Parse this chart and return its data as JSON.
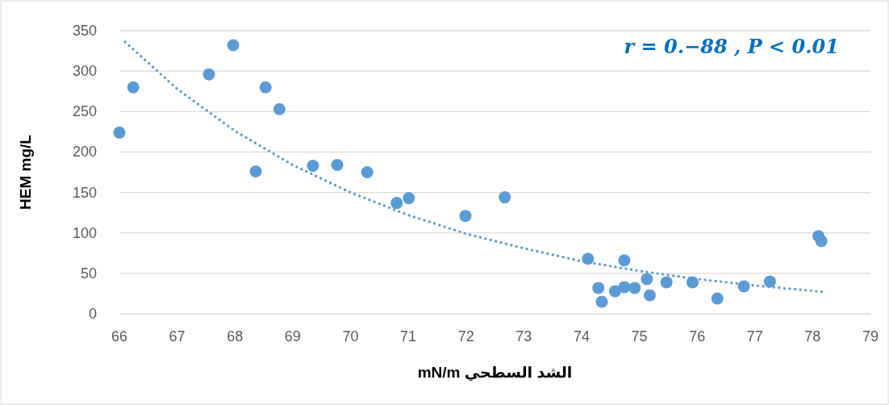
{
  "chart_data": {
    "type": "scatter",
    "xlabel": "الشد السطحي mN/m",
    "ylabel": "HEM mg/L",
    "annotations": [
      "r = 0.−88 , P < 0.01"
    ],
    "xlim": [
      66,
      79
    ],
    "xticks": [
      66,
      67,
      68,
      69,
      70,
      71,
      72,
      73,
      74,
      75,
      76,
      77,
      78,
      79
    ],
    "ylim": [
      0,
      350
    ],
    "yticks": [
      0,
      50,
      100,
      150,
      200,
      250,
      300,
      350
    ],
    "grid": "y",
    "series": [
      {
        "marker": "circle",
        "color": "#5b9bd5",
        "x": [
          66.0,
          66.24,
          67.55,
          67.97,
          68.36,
          68.53,
          68.77,
          69.35,
          69.77,
          70.29,
          70.8,
          71.01,
          71.99,
          72.67,
          74.11,
          74.29,
          74.35,
          74.58,
          74.74,
          74.74,
          74.92,
          75.13,
          75.18,
          75.47,
          75.92,
          76.35,
          76.81,
          77.26,
          78.1,
          78.15
        ],
        "values": [
          224,
          280,
          296,
          332,
          176,
          280,
          253,
          183,
          184,
          175,
          137,
          143,
          121,
          144,
          68,
          32,
          15,
          28,
          33,
          66,
          32,
          43,
          23,
          39,
          39,
          19,
          34,
          40,
          96,
          90
        ]
      },
      {
        "type": "line",
        "line_style": "dotted",
        "marker": "none",
        "color": "#5b9bd5",
        "x": [
          66.1,
          67,
          68,
          69,
          70,
          71,
          72,
          73,
          74,
          75,
          76,
          77,
          78.2
        ],
        "values": [
          336,
          278,
          226,
          184,
          150,
          122,
          99,
          81,
          65,
          53,
          43,
          35,
          27
        ]
      }
    ]
  }
}
